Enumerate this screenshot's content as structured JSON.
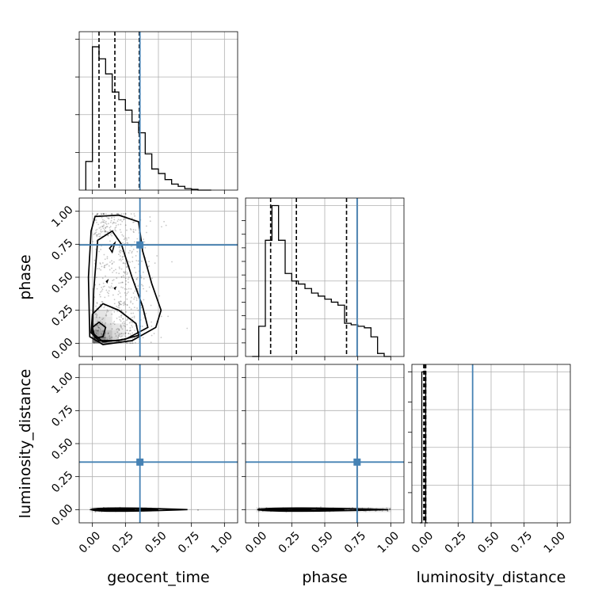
{
  "chart_data": {
    "type": "corner",
    "parameters": [
      "geocent_time",
      "phase",
      "luminosity_distance"
    ],
    "tick_labels": [
      "0.00",
      "0.25",
      "0.50",
      "0.75",
      "1.00"
    ],
    "tick_values": [
      0.0,
      0.25,
      0.5,
      0.75,
      1.0
    ],
    "axis_range": [
      -0.1,
      1.1
    ],
    "truths": {
      "geocent_time": 0.36,
      "phase": 0.745,
      "luminosity_distance": 0.36
    },
    "truth_color": "#4682b4",
    "quantiles": {
      "geocent_time": [
        0.05,
        0.17,
        0.355
      ],
      "phase": [
        0.09,
        0.285,
        0.665
      ],
      "luminosity_distance": [
        -0.01,
        -0.005,
        0.005
      ]
    },
    "histograms": {
      "geocent_time": {
        "edges": [
          -0.05,
          0.0,
          0.05,
          0.1,
          0.15,
          0.2,
          0.25,
          0.3,
          0.35,
          0.4,
          0.45,
          0.5,
          0.55,
          0.6,
          0.65,
          0.7,
          0.75,
          0.8,
          0.85,
          0.9
        ],
        "counts": [
          0.19,
          0.95,
          0.87,
          0.77,
          0.65,
          0.6,
          0.53,
          0.45,
          0.38,
          0.24,
          0.14,
          0.11,
          0.07,
          0.04,
          0.025,
          0.01,
          0.005,
          0.0,
          0.0
        ]
      },
      "phase": {
        "edges": [
          -0.05,
          0.0,
          0.05,
          0.1,
          0.15,
          0.2,
          0.25,
          0.3,
          0.35,
          0.4,
          0.45,
          0.5,
          0.55,
          0.6,
          0.65,
          0.7,
          0.75,
          0.8,
          0.85,
          0.9,
          0.95,
          1.0
        ],
        "counts": [
          0.0,
          0.2,
          0.77,
          1.0,
          0.77,
          0.55,
          0.5,
          0.48,
          0.45,
          0.42,
          0.4,
          0.38,
          0.36,
          0.34,
          0.22,
          0.21,
          0.2,
          0.19,
          0.13,
          0.02,
          0.0
        ]
      },
      "luminosity_distance": {
        "edges": [
          -0.04,
          -0.025,
          -0.01,
          0.005,
          0.02
        ],
        "counts": [
          0.0,
          1.0,
          1.0,
          0.0
        ]
      }
    },
    "ylim_hist": [
      0,
      1.05
    ]
  }
}
